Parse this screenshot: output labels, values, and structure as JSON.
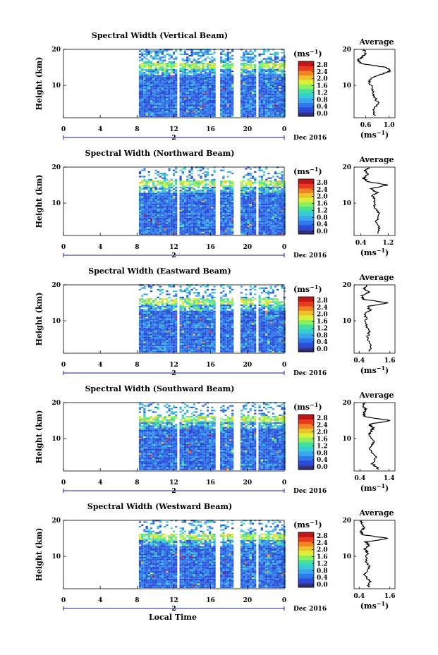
{
  "panels": [
    {
      "title": "Spectral Width (Vertical Beam)",
      "avg_title": "Average",
      "avg_xlim": [
        0.4,
        1.1
      ],
      "avg_xticks": [
        "0.6",
        "1.0"
      ],
      "avg_xtick_values": [
        0.6,
        1.0
      ]
    },
    {
      "title": "Spectral Width (Northward Beam)",
      "avg_title": "Average",
      "avg_xlim": [
        0.2,
        1.4
      ],
      "avg_xticks": [
        "0.4",
        "1.2"
      ],
      "avg_xtick_values": [
        0.4,
        1.2
      ]
    },
    {
      "title": "Spectral Width (Eastward Beam)",
      "avg_title": "Average",
      "avg_xlim": [
        0.2,
        1.8
      ],
      "avg_xticks": [
        "0.4",
        "1.6"
      ],
      "avg_xtick_values": [
        0.4,
        1.6
      ]
    },
    {
      "title": "Spectral Width (Southward Beam)",
      "avg_title": "Average",
      "avg_xlim": [
        0.2,
        1.6
      ],
      "avg_xticks": [
        "0.4",
        "1.4"
      ],
      "avg_xtick_values": [
        0.4,
        1.4
      ]
    },
    {
      "title": "Spectral Width (Westward Beam)",
      "avg_title": "Average",
      "avg_xlim": [
        0.2,
        1.8
      ],
      "avg_xticks": [
        "0.4",
        "1.6"
      ],
      "avg_xtick_values": [
        0.4,
        1.6
      ]
    }
  ],
  "common": {
    "ylabel": "Height (km)",
    "yticks": [
      "10",
      "20"
    ],
    "ylim": [
      1,
      20
    ],
    "xticks": [
      "0",
      "4",
      "8",
      "12",
      "16",
      "20",
      "0"
    ],
    "xtick_hours": [
      0,
      4,
      8,
      12,
      16,
      20,
      24
    ],
    "day_label": "2",
    "date_label": "Dec 2016",
    "unit_label": "(ms",
    "unit_exp": "−1",
    "unit_close": ")",
    "colorbar_ticks": [
      "2.8",
      "2.4",
      "2.0",
      "1.6",
      "1.2",
      "0.8",
      "0.4",
      "0.0"
    ],
    "colorbar_values": [
      2.8,
      2.4,
      2.0,
      1.6,
      1.2,
      0.8,
      0.4,
      0.0
    ],
    "xlabel": "Local Time",
    "data_start_hour": 8.2,
    "data_end_hour": 24,
    "data_gaps_hours": [
      [
        12.2,
        12.6
      ],
      [
        16.4,
        16.9
      ],
      [
        18.4,
        19.0
      ],
      [
        20.8,
        21.2
      ]
    ]
  },
  "colors": {
    "colorscale": [
      "#3a3aa0",
      "#2a4cd8",
      "#2f79ec",
      "#3aa6f0",
      "#35ccd6",
      "#42e0a0",
      "#8cf05a",
      "#d8f03a",
      "#f0c028",
      "#f08424",
      "#e83a20",
      "#c01818"
    ],
    "axis": "#000000",
    "timeline": "#1a1ab0"
  },
  "chart_data": [
    {
      "type": "heatmap",
      "title": "Spectral Width (Vertical Beam)",
      "ylabel": "Height (km)",
      "xticks": [
        "0",
        "4",
        "8",
        "12",
        "16",
        "20",
        "0"
      ],
      "yticks": [
        "10",
        "20"
      ],
      "ylim": [
        1,
        20
      ],
      "x_range_hours": [
        0,
        24
      ],
      "colorbar": {
        "label": "(ms−1)",
        "range": [
          0.0,
          3.0
        ],
        "ticks": [
          0.0,
          0.4,
          0.8,
          1.2,
          1.6,
          2.0,
          2.4,
          2.8
        ]
      },
      "date": "Dec 2016",
      "profile": {
        "title": "Average",
        "xlabel": "(ms−1)",
        "xlim": [
          0.4,
          1.1
        ],
        "xticks": [
          0.6,
          1.0
        ],
        "height_km": [
          1.5,
          3,
          5,
          7,
          9,
          11,
          12,
          13,
          14,
          15,
          16,
          17,
          18,
          19,
          20
        ],
        "width": [
          0.76,
          0.72,
          0.82,
          0.74,
          0.72,
          0.65,
          0.7,
          0.86,
          1.02,
          0.95,
          0.52,
          0.46,
          0.55,
          0.6,
          0.57
        ]
      }
    },
    {
      "type": "heatmap",
      "title": "Spectral Width (Northward Beam)",
      "ylabel": "Height (km)",
      "xticks": [
        "0",
        "4",
        "8",
        "12",
        "16",
        "20",
        "0"
      ],
      "yticks": [
        "10",
        "20"
      ],
      "ylim": [
        1,
        20
      ],
      "x_range_hours": [
        0,
        24
      ],
      "colorbar": {
        "label": "(ms−1)",
        "range": [
          0.0,
          3.0
        ],
        "ticks": [
          0.0,
          0.4,
          0.8,
          1.2,
          1.6,
          2.0,
          2.4,
          2.8
        ]
      },
      "date": "Dec 2016",
      "profile": {
        "title": "Average",
        "xlabel": "(ms−1)",
        "xlim": [
          0.2,
          1.4
        ],
        "xticks": [
          0.4,
          1.2
        ],
        "height_km": [
          1.5,
          3,
          5,
          7,
          9,
          11,
          12,
          13,
          14,
          15,
          16,
          17,
          18,
          19,
          20
        ],
        "width": [
          0.9,
          0.95,
          0.86,
          0.94,
          0.78,
          0.82,
          0.72,
          0.88,
          0.66,
          1.2,
          0.58,
          0.48,
          0.62,
          0.52,
          0.66
        ]
      }
    },
    {
      "type": "heatmap",
      "title": "Spectral Width (Eastward Beam)",
      "ylabel": "Height (km)",
      "xticks": [
        "0",
        "4",
        "8",
        "12",
        "16",
        "20",
        "0"
      ],
      "yticks": [
        "10",
        "20"
      ],
      "ylim": [
        1,
        20
      ],
      "x_range_hours": [
        0,
        24
      ],
      "colorbar": {
        "label": "(ms−1)",
        "range": [
          0.0,
          3.0
        ],
        "ticks": [
          0.0,
          0.4,
          0.8,
          1.2,
          1.6,
          2.0,
          2.4,
          2.8
        ]
      },
      "date": "Dec 2016",
      "profile": {
        "title": "Average",
        "xlabel": "(ms−1)",
        "xlim": [
          0.2,
          1.8
        ],
        "xticks": [
          0.4,
          1.6
        ],
        "height_km": [
          1.5,
          3,
          5,
          7,
          9,
          11,
          12,
          13,
          14,
          15,
          16,
          17,
          18,
          19,
          20
        ],
        "width": [
          0.8,
          0.85,
          0.72,
          0.78,
          0.68,
          0.66,
          0.62,
          0.84,
          0.7,
          1.55,
          0.56,
          0.52,
          0.78,
          0.58,
          0.74
        ]
      }
    },
    {
      "type": "heatmap",
      "title": "Spectral Width (Southward Beam)",
      "ylabel": "Height (km)",
      "xticks": [
        "0",
        "4",
        "8",
        "12",
        "16",
        "20",
        "0"
      ],
      "yticks": [
        "10",
        "20"
      ],
      "ylim": [
        1,
        20
      ],
      "x_range_hours": [
        0,
        24
      ],
      "colorbar": {
        "label": "(ms−1)",
        "range": [
          0.0,
          3.0
        ],
        "ticks": [
          0.0,
          0.4,
          0.8,
          1.2,
          1.6,
          2.0,
          2.4,
          2.8
        ]
      },
      "date": "Dec 2016",
      "profile": {
        "title": "Average",
        "xlabel": "(ms−1)",
        "xlim": [
          0.2,
          1.6
        ],
        "xticks": [
          0.4,
          1.4
        ],
        "height_km": [
          1.5,
          3,
          5,
          7,
          9,
          11,
          12,
          13,
          14,
          15,
          16,
          17,
          18,
          19,
          20
        ],
        "width": [
          1.05,
          0.82,
          0.95,
          0.72,
          0.88,
          0.7,
          0.78,
          0.86,
          0.7,
          1.45,
          0.6,
          0.52,
          0.62,
          0.5,
          0.58
        ]
      }
    },
    {
      "type": "heatmap",
      "title": "Spectral Width (Westward Beam)",
      "ylabel": "Height (km)",
      "xticks": [
        "0",
        "4",
        "8",
        "12",
        "16",
        "20",
        "0"
      ],
      "yticks": [
        "10",
        "20"
      ],
      "ylim": [
        1,
        20
      ],
      "x_range_hours": [
        0,
        24
      ],
      "colorbar": {
        "label": "(ms−1)",
        "range": [
          0.0,
          3.0
        ],
        "ticks": [
          0.0,
          0.4,
          0.8,
          1.2,
          1.6,
          2.0,
          2.4,
          2.8
        ]
      },
      "date": "Dec 2016",
      "profile": {
        "title": "Average",
        "xlabel": "(ms−1)",
        "xlim": [
          0.2,
          1.8
        ],
        "xticks": [
          0.4,
          1.6
        ],
        "height_km": [
          1.5,
          3,
          5,
          7,
          9,
          11,
          12,
          13,
          14,
          15,
          16,
          17,
          18,
          19,
          20
        ],
        "width": [
          0.75,
          0.82,
          0.6,
          0.78,
          0.66,
          0.72,
          0.62,
          0.78,
          0.66,
          1.55,
          0.52,
          0.46,
          0.62,
          0.48,
          0.5
        ]
      }
    }
  ]
}
